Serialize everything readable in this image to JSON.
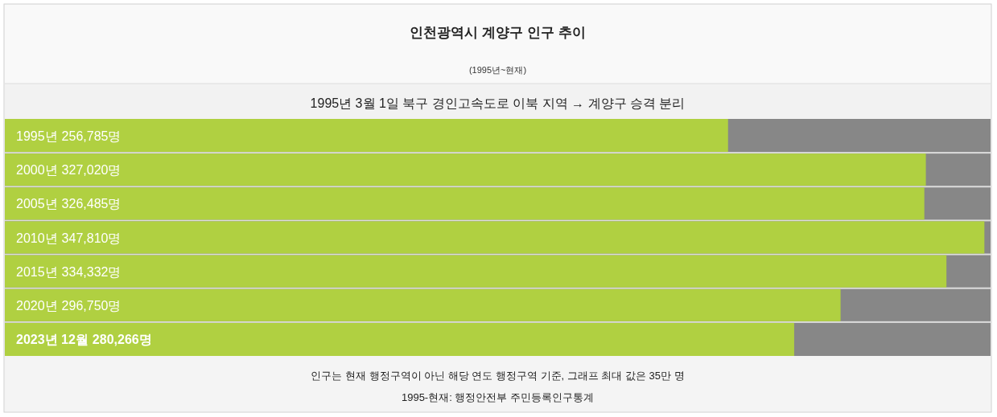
{
  "chart_data": {
    "type": "bar",
    "orientation": "horizontal",
    "title": "인천광역시 계양구 인구 추이",
    "subtitle": "(1995년~현재)",
    "annotations": [
      "1995년 3월 1일 북구 경인고속도로 이북 지역 → 계양구 승격 분리",
      "인구는 현재 행정구역이 아닌 해당 연도 행정구역 기준, 그래프 최대 값은 35만 명",
      "1995-현재: 행정안전부 주민등록인구통계"
    ],
    "categories": [
      "1995년",
      "2000년",
      "2005년",
      "2010년",
      "2015년",
      "2020년",
      "2023년 12월"
    ],
    "values": [
      256785,
      327020,
      326485,
      347810,
      334332,
      296750,
      280266
    ],
    "value_labels": [
      "256,785명",
      "327,020명",
      "326,485명",
      "347,810명",
      "334,332명",
      "296,750명",
      "280,266명"
    ],
    "color": "#b0d041",
    "xlim": [
      0,
      350000
    ],
    "tick_labels": "y"
  }
}
